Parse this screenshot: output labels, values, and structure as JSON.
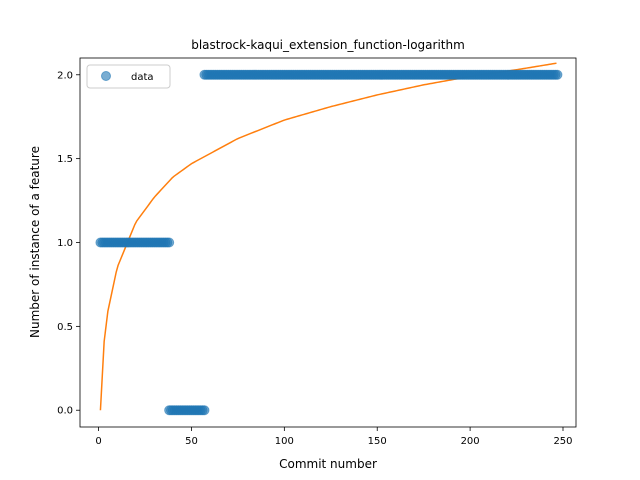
{
  "chart_data": {
    "type": "scatter",
    "title": "blastrock-kaqui_extension_function-logarithm",
    "xlabel": "Commit number",
    "ylabel": "Number of instance of a feature",
    "xlim": [
      -10,
      257
    ],
    "ylim": [
      -0.1,
      2.1
    ],
    "xticks": [
      0,
      50,
      100,
      150,
      200,
      250
    ],
    "yticks": [
      0.0,
      0.5,
      1.0,
      1.5,
      2.0
    ],
    "xtick_labels": [
      "0",
      "50",
      "100",
      "150",
      "200",
      "250"
    ],
    "ytick_labels": [
      "0.0",
      "0.5",
      "1.0",
      "1.5",
      "2.0"
    ],
    "grid": false,
    "legend": {
      "placement": "upper-left",
      "entries": [
        "data"
      ]
    },
    "series": [
      {
        "name": "data",
        "kind": "scatter",
        "color": "#1f77b4",
        "segments": [
          {
            "x_start": 1,
            "x_end": 38,
            "y": 1
          },
          {
            "x_start": 38,
            "x_end": 57,
            "y": 0
          },
          {
            "x_start": 57,
            "x_end": 247,
            "y": 2
          }
        ]
      },
      {
        "kind": "line",
        "color": "#ff7f0e",
        "samples": [
          {
            "x": 1,
            "y": 0.0
          },
          {
            "x": 3,
            "y": 0.41
          },
          {
            "x": 5,
            "y": 0.59
          },
          {
            "x": 10,
            "y": 0.85
          },
          {
            "x": 20,
            "y": 1.12
          },
          {
            "x": 30,
            "y": 1.27
          },
          {
            "x": 40,
            "y": 1.39
          },
          {
            "x": 50,
            "y": 1.47
          },
          {
            "x": 75,
            "y": 1.62
          },
          {
            "x": 100,
            "y": 1.73
          },
          {
            "x": 125,
            "y": 1.81
          },
          {
            "x": 150,
            "y": 1.88
          },
          {
            "x": 175,
            "y": 1.94
          },
          {
            "x": 200,
            "y": 1.99
          },
          {
            "x": 225,
            "y": 2.03
          },
          {
            "x": 247,
            "y": 2.07
          }
        ]
      }
    ]
  }
}
